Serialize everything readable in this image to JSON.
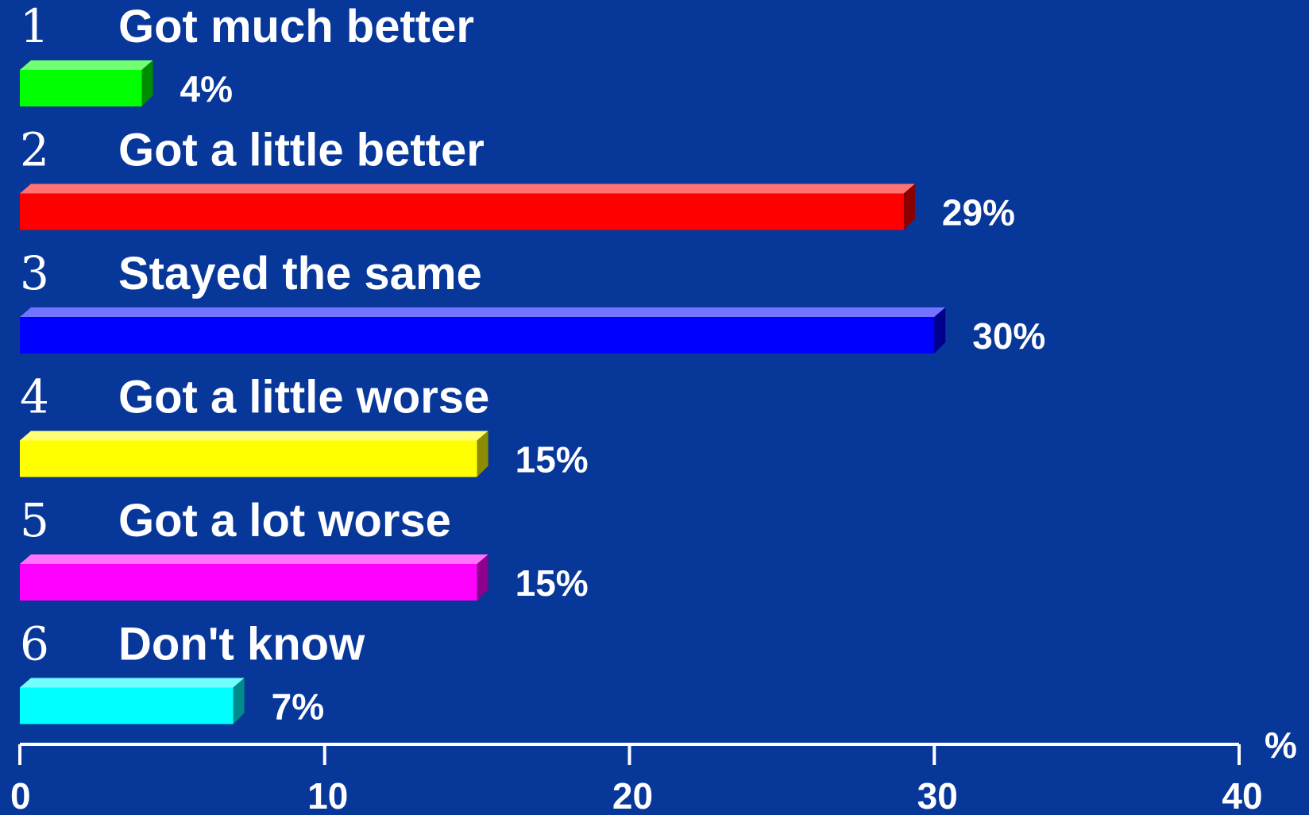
{
  "chart_data": {
    "type": "bar",
    "orientation": "horizontal",
    "categories": [
      {
        "number": "1",
        "label": "Got much better",
        "value": 4,
        "value_label": "4%",
        "color": "#00ff00"
      },
      {
        "number": "2",
        "label": "Got a little better",
        "value": 29,
        "value_label": "29%",
        "color": "#ff0000"
      },
      {
        "number": "3",
        "label": "Stayed the same",
        "value": 30,
        "value_label": "30%",
        "color": "#0000ff"
      },
      {
        "number": "4",
        "label": "Got a little worse",
        "value": 15,
        "value_label": "15%",
        "color": "#ffff00"
      },
      {
        "number": "5",
        "label": "Got a lot worse",
        "value": 15,
        "value_label": "15%",
        "color": "#ff00ff"
      },
      {
        "number": "6",
        "label": "Don't know",
        "value": 7,
        "value_label": "7%",
        "color": "#00ffff"
      }
    ],
    "xlim": [
      0,
      40
    ],
    "x_ticks": [
      "0",
      "10",
      "20",
      "30",
      "40"
    ],
    "x_unit": "%",
    "grid": false,
    "legend": "none",
    "background_color": "#08379a"
  }
}
